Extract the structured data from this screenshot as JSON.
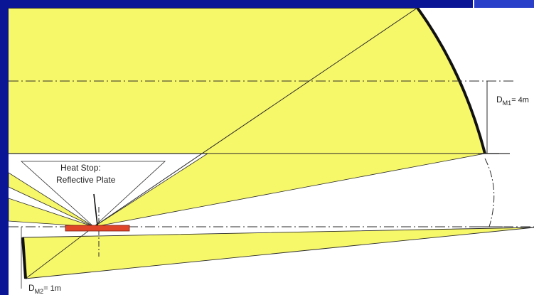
{
  "diagram": {
    "heat_stop_label_line1": "Heat Stop:",
    "heat_stop_label_line2": "Reflective Plate",
    "dm1_main": "D",
    "dm1_sub": "M1",
    "dm1_value": "= 4m",
    "dm2_main": "D",
    "dm2_sub": "M2",
    "dm2_value": "= 1m"
  },
  "colors": {
    "background": "#0a1596",
    "beam_fill": "#f7f76a",
    "beam_stroke": "#2b2b2b",
    "heat_stop_plate": "#e0452a",
    "mirror": "#111111",
    "panel": "#ffffff",
    "corner_box": "#2a3fc9"
  }
}
